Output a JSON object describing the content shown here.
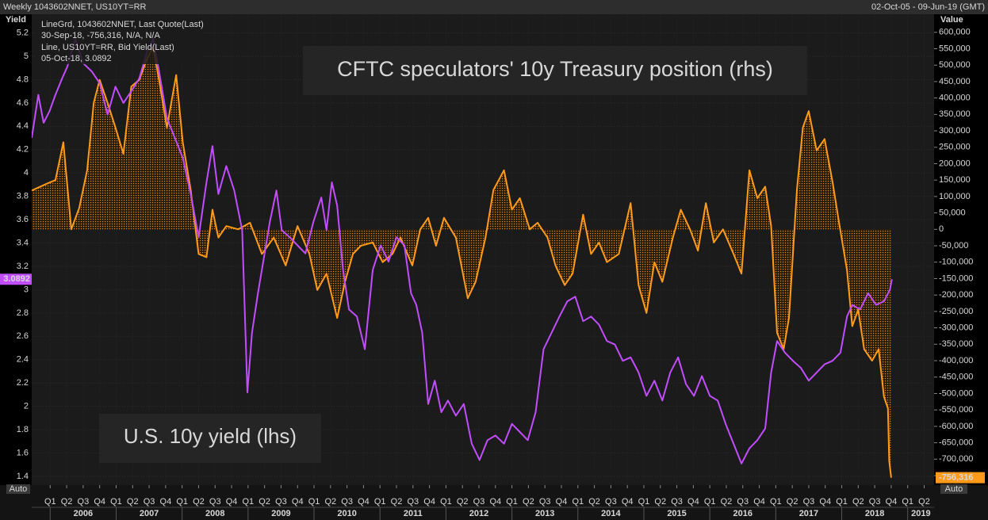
{
  "chart_data": {
    "type": "line",
    "header_left": "Weekly 1043602NNET, US10YT=RR",
    "header_right": "02-Oct-05 - 09-Jun-19 (GMT)",
    "ylabel": "Yield",
    "y2label": "Value",
    "annotations": [
      "CFTC speculators' 10y Treasury position (rhs)",
      "U.S. 10y yield (lhs)"
    ],
    "auto_left": "Auto",
    "auto_right": "Auto",
    "grid": true,
    "xlim": [
      2005.72,
      2019.4
    ],
    "ylim": [
      1.325,
      5.36
    ],
    "y2lim": [
      -779000,
      655000
    ],
    "yticks": [
      1.4,
      1.6,
      1.8,
      2,
      2.2,
      2.4,
      2.6,
      2.8,
      3,
      3.2,
      3.4,
      3.6,
      3.8,
      4,
      4.2,
      4.4,
      4.6,
      4.8,
      5,
      5.2
    ],
    "y2ticks": [
      {
        "value": 600000,
        "label": "600,000"
      },
      {
        "value": 550000,
        "label": "550,000"
      },
      {
        "value": 500000,
        "label": "500,000"
      },
      {
        "value": 450000,
        "label": "450,000"
      },
      {
        "value": 400000,
        "label": "400,000"
      },
      {
        "value": 350000,
        "label": "350,000"
      },
      {
        "value": 300000,
        "label": "300,000"
      },
      {
        "value": 250000,
        "label": "250,000"
      },
      {
        "value": 200000,
        "label": "200,000"
      },
      {
        "value": 150000,
        "label": "150,000"
      },
      {
        "value": 100000,
        "label": "100,000"
      },
      {
        "value": 50000,
        "label": "50,000"
      },
      0,
      {
        "value": -50000,
        "label": "-50,000"
      },
      {
        "value": -100000,
        "label": "-100,000"
      },
      {
        "value": -150000,
        "label": "-150,000"
      },
      {
        "value": -200000,
        "label": "-200,000"
      },
      {
        "value": -250000,
        "label": "-250,000"
      },
      {
        "value": -300000,
        "label": "-300,000"
      },
      {
        "value": -350000,
        "label": "-350,000"
      },
      {
        "value": -400000,
        "label": "-400,000"
      },
      {
        "value": -450000,
        "label": "-450,000"
      },
      {
        "value": -500000,
        "label": "-500,000"
      },
      {
        "value": -550000,
        "label": "-550,000"
      },
      {
        "value": -600000,
        "label": "-600,000"
      },
      {
        "value": -650000,
        "label": "-650,000"
      },
      {
        "value": -700000,
        "label": "-700,000"
      },
      {
        "value": -750000,
        "label": "-750,000"
      }
    ],
    "xticks": [
      {
        "value": 2006,
        "label": "Q1"
      },
      {
        "value": 2006.25,
        "label": "Q2"
      },
      {
        "value": 2006.5,
        "label": "Q3"
      },
      {
        "value": 2006.75,
        "label": "Q4"
      },
      {
        "value": 2007,
        "label": "Q1"
      },
      {
        "value": 2007.25,
        "label": "Q2"
      },
      {
        "value": 2007.5,
        "label": "Q3"
      },
      {
        "value": 2007.75,
        "label": "Q4"
      },
      {
        "value": 2008,
        "label": "Q1"
      },
      {
        "value": 2008.25,
        "label": "Q2"
      },
      {
        "value": 2008.5,
        "label": "Q3"
      },
      {
        "value": 2008.75,
        "label": "Q4"
      },
      {
        "value": 2009,
        "label": "Q1"
      },
      {
        "value": 2009.25,
        "label": "Q2"
      },
      {
        "value": 2009.5,
        "label": "Q3"
      },
      {
        "value": 2009.75,
        "label": "Q4"
      },
      {
        "value": 2010,
        "label": "Q1"
      },
      {
        "value": 2010.25,
        "label": "Q2"
      },
      {
        "value": 2010.5,
        "label": "Q3"
      },
      {
        "value": 2010.75,
        "label": "Q4"
      },
      {
        "value": 2011,
        "label": "Q1"
      },
      {
        "value": 2011.25,
        "label": "Q2"
      },
      {
        "value": 2011.5,
        "label": "Q3"
      },
      {
        "value": 2011.75,
        "label": "Q4"
      },
      {
        "value": 2012,
        "label": "Q1"
      },
      {
        "value": 2012.25,
        "label": "Q2"
      },
      {
        "value": 2012.5,
        "label": "Q3"
      },
      {
        "value": 2012.75,
        "label": "Q4"
      },
      {
        "value": 2013,
        "label": "Q1"
      },
      {
        "value": 2013.25,
        "label": "Q2"
      },
      {
        "value": 2013.5,
        "label": "Q3"
      },
      {
        "value": 2013.75,
        "label": "Q4"
      },
      {
        "value": 2014,
        "label": "Q1"
      },
      {
        "value": 2014.25,
        "label": "Q2"
      },
      {
        "value": 2014.5,
        "label": "Q3"
      },
      {
        "value": 2014.75,
        "label": "Q4"
      },
      {
        "value": 2015,
        "label": "Q1"
      },
      {
        "value": 2015.25,
        "label": "Q2"
      },
      {
        "value": 2015.5,
        "label": "Q3"
      },
      {
        "value": 2015.75,
        "label": "Q4"
      },
      {
        "value": 2016,
        "label": "Q1"
      },
      {
        "value": 2016.25,
        "label": "Q2"
      },
      {
        "value": 2016.5,
        "label": "Q3"
      },
      {
        "value": 2016.75,
        "label": "Q4"
      },
      {
        "value": 2017,
        "label": "Q1"
      },
      {
        "value": 2017.25,
        "label": "Q2"
      },
      {
        "value": 2017.5,
        "label": "Q3"
      },
      {
        "value": 2017.75,
        "label": "Q4"
      },
      {
        "value": 2018,
        "label": "Q1"
      },
      {
        "value": 2018.25,
        "label": "Q2"
      },
      {
        "value": 2018.5,
        "label": "Q3"
      },
      {
        "value": 2018.75,
        "label": "Q4"
      },
      {
        "value": 2019,
        "label": "Q1"
      },
      {
        "value": 2019.25,
        "label": "Q2"
      }
    ],
    "year_ticks": [
      2006,
      2007,
      2008,
      2009,
      2010,
      2011,
      2012,
      2013,
      2014,
      2015,
      2016,
      2017,
      2018,
      2019
    ],
    "series": [
      {
        "name": "LineGrd, 1043602NNET, Last Quote(Last)",
        "legend_detail": "30-Sep-18, -756,316, N/A, N/A",
        "color": "#ff9a1a",
        "axis": "y2",
        "fill": true,
        "tag": "-756,316",
        "x": [
          2005.72,
          2005.96,
          2006.08,
          2006.2,
          2006.32,
          2006.44,
          2006.56,
          2006.66,
          2006.75,
          2006.87,
          2006.99,
          2007.11,
          2007.23,
          2007.35,
          2007.47,
          2007.56,
          2007.65,
          2007.77,
          2007.91,
          2008.01,
          2008.13,
          2008.25,
          2008.37,
          2008.46,
          2008.55,
          2008.67,
          2008.85,
          2009.03,
          2009.21,
          2009.39,
          2009.57,
          2009.75,
          2009.93,
          2010.05,
          2010.19,
          2010.35,
          2010.47,
          2010.59,
          2010.71,
          2010.89,
          2011.04,
          2011.19,
          2011.31,
          2011.49,
          2011.61,
          2011.73,
          2011.85,
          2011.97,
          2012.15,
          2012.33,
          2012.45,
          2012.6,
          2012.72,
          2012.88,
          2013,
          2013.12,
          2013.27,
          2013.39,
          2013.54,
          2013.66,
          2013.8,
          2013.92,
          2014.08,
          2014.2,
          2014.32,
          2014.44,
          2014.62,
          2014.8,
          2014.92,
          2015.04,
          2015.16,
          2015.28,
          2015.44,
          2015.56,
          2015.7,
          2015.82,
          2015.94,
          2016.06,
          2016.2,
          2016.36,
          2016.48,
          2016.6,
          2016.72,
          2016.84,
          2016.93,
          2017.02,
          2017.12,
          2017.2,
          2017.32,
          2017.41,
          2017.5,
          2017.62,
          2017.74,
          2017.86,
          2017.96,
          2018.08,
          2018.16,
          2018.25,
          2018.34,
          2018.46,
          2018.56,
          2018.64,
          2018.7,
          2018.72,
          2018.75
        ],
        "values": [
          118000,
          140000,
          150000,
          265000,
          0,
          65000,
          180000,
          385000,
          455000,
          385000,
          310000,
          230000,
          435000,
          455000,
          520000,
          555000,
          455000,
          310000,
          470000,
          265000,
          120000,
          -75000,
          -85000,
          60000,
          -25000,
          10000,
          0,
          20000,
          -75000,
          -25000,
          -110000,
          10000,
          -75000,
          -185000,
          -135000,
          -270000,
          -160000,
          -75000,
          -50000,
          -40000,
          -100000,
          -75000,
          -25000,
          -110000,
          0,
          35000,
          -50000,
          35000,
          -25000,
          -210000,
          -160000,
          -25000,
          120000,
          180000,
          60000,
          95000,
          0,
          20000,
          -25000,
          -110000,
          -170000,
          -135000,
          45000,
          -75000,
          -40000,
          -100000,
          -75000,
          80000,
          -170000,
          -255000,
          -100000,
          -160000,
          -25000,
          60000,
          0,
          -65000,
          80000,
          -40000,
          0,
          -75000,
          -135000,
          180000,
          95000,
          130000,
          10000,
          -315000,
          -365000,
          -270000,
          120000,
          310000,
          360000,
          240000,
          275000,
          145000,
          20000,
          -125000,
          -295000,
          -245000,
          -365000,
          -400000,
          -365000,
          -510000,
          -545000,
          -705000,
          -756316
        ]
      },
      {
        "name": "Line, US10YT=RR, Bid Yield(Last)",
        "legend_detail": "05-Oct-18, 3.0892",
        "color": "#c24dff",
        "axis": "y",
        "tag": "3.0892",
        "x": [
          2005.72,
          2005.82,
          2005.9,
          2005.99,
          2006.08,
          2006.18,
          2006.26,
          2006.38,
          2006.5,
          2006.63,
          2006.75,
          2006.87,
          2006.99,
          2007.11,
          2007.23,
          2007.35,
          2007.47,
          2007.56,
          2007.65,
          2007.77,
          2007.89,
          2008.01,
          2008.13,
          2008.25,
          2008.37,
          2008.46,
          2008.55,
          2008.67,
          2008.79,
          2008.91,
          2008.99,
          2009.06,
          2009.15,
          2009.23,
          2009.33,
          2009.43,
          2009.51,
          2009.63,
          2009.75,
          2009.87,
          2009.99,
          2010.11,
          2010.19,
          2010.27,
          2010.35,
          2010.44,
          2010.53,
          2010.65,
          2010.77,
          2010.89,
          2011.01,
          2011.13,
          2011.25,
          2011.37,
          2011.47,
          2011.55,
          2011.64,
          2011.73,
          2011.83,
          2011.93,
          2012.03,
          2012.15,
          2012.27,
          2012.39,
          2012.51,
          2012.63,
          2012.75,
          2012.88,
          2013,
          2013.12,
          2013.24,
          2013.36,
          2013.48,
          2013.6,
          2013.72,
          2013.84,
          2013.96,
          2014.08,
          2014.2,
          2014.32,
          2014.44,
          2014.56,
          2014.68,
          2014.8,
          2014.92,
          2015.04,
          2015.16,
          2015.28,
          2015.4,
          2015.52,
          2015.64,
          2015.76,
          2015.88,
          2016,
          2016.12,
          2016.24,
          2016.36,
          2016.48,
          2016.6,
          2016.72,
          2016.84,
          2016.93,
          2017.02,
          2017.14,
          2017.26,
          2017.38,
          2017.5,
          2017.62,
          2017.74,
          2017.86,
          2017.98,
          2018.08,
          2018.16,
          2018.28,
          2018.4,
          2018.52,
          2018.64,
          2018.73,
          2018.76
        ],
        "values": [
          4.3,
          4.67,
          4.43,
          4.53,
          4.67,
          4.81,
          4.91,
          5.15,
          4.94,
          4.87,
          4.77,
          4.5,
          4.74,
          4.6,
          4.7,
          4.81,
          5.04,
          5.15,
          4.87,
          4.47,
          4.3,
          4.13,
          3.82,
          3.45,
          3.92,
          4.23,
          3.82,
          4.06,
          3.85,
          3.51,
          2.12,
          2.63,
          2.97,
          3.24,
          3.58,
          3.85,
          3.51,
          3.45,
          3.38,
          3.31,
          3.58,
          3.79,
          3.51,
          3.92,
          3.72,
          3.17,
          2.83,
          2.77,
          2.49,
          3.17,
          3.38,
          3.24,
          3.45,
          3.38,
          2.97,
          2.87,
          2.63,
          2.02,
          2.22,
          1.95,
          2.05,
          1.92,
          2.02,
          1.68,
          1.54,
          1.71,
          1.75,
          1.68,
          1.85,
          1.78,
          1.71,
          1.95,
          2.49,
          2.63,
          2.77,
          2.9,
          2.94,
          2.73,
          2.77,
          2.7,
          2.56,
          2.53,
          2.39,
          2.42,
          2.29,
          2.09,
          2.22,
          2.05,
          2.29,
          2.42,
          2.19,
          2.09,
          2.26,
          2.09,
          2.05,
          1.85,
          1.68,
          1.51,
          1.64,
          1.71,
          1.81,
          2.29,
          2.56,
          2.46,
          2.39,
          2.33,
          2.22,
          2.29,
          2.36,
          2.39,
          2.46,
          2.77,
          2.87,
          2.83,
          2.97,
          2.87,
          2.9,
          3,
          3.0892
        ]
      }
    ]
  }
}
